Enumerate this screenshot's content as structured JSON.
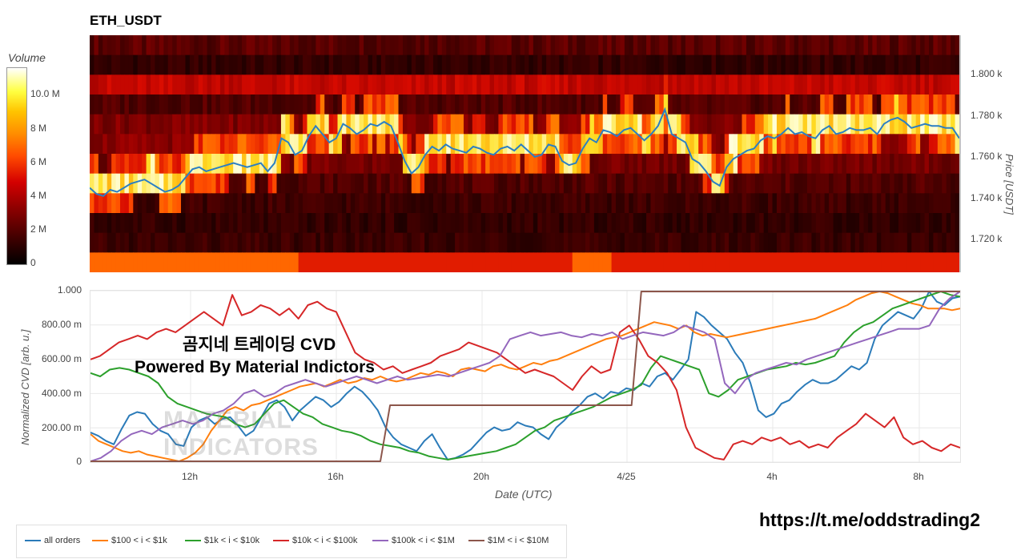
{
  "title": "ETH_USDT",
  "telegram_text": "https://t.me/oddstrading2",
  "watermark": {
    "line1": "곰지네 트레이딩 CVD",
    "line2": "Powered By Material Indictors",
    "logo_line1": "MATERIAL",
    "logo_line2": "INDICATORS"
  },
  "chart_data": [
    {
      "type": "heatmap",
      "title": "ETH_USDT",
      "colorbar": {
        "label": "Volume",
        "ticks": [
          "0",
          "2 M",
          "4 M",
          "6 M",
          "8 M",
          "10.0 M"
        ],
        "range": [
          0,
          11500000
        ]
      },
      "y_axis": {
        "label": "Price [USDT]",
        "ticks": [
          "1.720 k",
          "1.740 k",
          "1.760 k",
          "1.780 k",
          "1.800 k"
        ],
        "ylim": [
          1705,
          1820
        ]
      },
      "price_bands": [
        1815,
        1805,
        1795,
        1785,
        1775,
        1765,
        1755,
        1745,
        1735,
        1725,
        1715,
        1708
      ],
      "price_line": {
        "color": "#2a7fc4",
        "values": [
          1746,
          1743,
          1742,
          1745,
          1744,
          1746,
          1748,
          1749,
          1750,
          1748,
          1746,
          1744,
          1745,
          1747,
          1751,
          1755,
          1756,
          1754,
          1755,
          1756,
          1757,
          1758,
          1757,
          1756,
          1757,
          1758,
          1754,
          1758,
          1770,
          1768,
          1762,
          1764,
          1771,
          1776,
          1772,
          1768,
          1770,
          1777,
          1775,
          1772,
          1774,
          1777,
          1776,
          1778,
          1776,
          1768,
          1759,
          1753,
          1756,
          1762,
          1766,
          1764,
          1767,
          1765,
          1764,
          1763,
          1766,
          1765,
          1763,
          1762,
          1765,
          1766,
          1764,
          1767,
          1764,
          1761,
          1762,
          1767,
          1766,
          1759,
          1757,
          1758,
          1765,
          1770,
          1768,
          1774,
          1773,
          1771,
          1774,
          1775,
          1772,
          1769,
          1772,
          1776,
          1784,
          1772,
          1770,
          1768,
          1760,
          1758,
          1754,
          1749,
          1747,
          1756,
          1760,
          1762,
          1764,
          1765,
          1769,
          1771,
          1770,
          1772,
          1775,
          1772,
          1773,
          1771,
          1770,
          1774,
          1776,
          1772,
          1773,
          1775,
          1774,
          1774,
          1775,
          1772,
          1777,
          1779,
          1780,
          1778,
          1775,
          1776,
          1777,
          1776,
          1776,
          1775,
          1775,
          1770
        ]
      }
    },
    {
      "type": "line",
      "y_axis": {
        "label": "Normalized CVD [arb. u.]",
        "ticks": [
          "0",
          "200.00 m",
          "400.00 m",
          "600.00 m",
          "800.00 m",
          "1.000"
        ],
        "ylim": [
          0,
          1.0
        ]
      },
      "x_axis": {
        "label": "Date (UTC)",
        "ticks": [
          "12h",
          "16h",
          "20h",
          "4/25",
          "4h",
          "8h"
        ]
      },
      "legend_position": "bottom",
      "series": [
        {
          "name": "all orders",
          "color": "#2b7bb9",
          "values": [
            0.17,
            0.15,
            0.12,
            0.1,
            0.19,
            0.27,
            0.29,
            0.28,
            0.22,
            0.18,
            0.16,
            0.1,
            0.09,
            0.2,
            0.24,
            0.26,
            0.22,
            0.25,
            0.26,
            0.21,
            0.15,
            0.18,
            0.26,
            0.34,
            0.36,
            0.32,
            0.24,
            0.3,
            0.34,
            0.38,
            0.36,
            0.32,
            0.35,
            0.4,
            0.44,
            0.41,
            0.36,
            0.3,
            0.2,
            0.14,
            0.1,
            0.08,
            0.06,
            0.12,
            0.16,
            0.08,
            0.01,
            0.02,
            0.04,
            0.07,
            0.12,
            0.17,
            0.2,
            0.18,
            0.19,
            0.23,
            0.21,
            0.2,
            0.16,
            0.13,
            0.2,
            0.24,
            0.29,
            0.33,
            0.38,
            0.4,
            0.37,
            0.41,
            0.4,
            0.43,
            0.42,
            0.46,
            0.44,
            0.5,
            0.52,
            0.48,
            0.54,
            0.6,
            0.88,
            0.85,
            0.8,
            0.76,
            0.72,
            0.64,
            0.58,
            0.46,
            0.3,
            0.26,
            0.28,
            0.34,
            0.36,
            0.41,
            0.45,
            0.48,
            0.46,
            0.46,
            0.48,
            0.52,
            0.56,
            0.54,
            0.58,
            0.72,
            0.8,
            0.84,
            0.88,
            0.86,
            0.84,
            0.9,
            1.0,
            0.94,
            0.92,
            0.96,
            0.97
          ]
        },
        {
          "name": "$100 < i < $1k",
          "color": "#ff7f0e",
          "values": [
            0.16,
            0.12,
            0.1,
            0.08,
            0.06,
            0.05,
            0.06,
            0.04,
            0.03,
            0.02,
            0.01,
            0.0,
            0.02,
            0.05,
            0.1,
            0.18,
            0.24,
            0.3,
            0.32,
            0.3,
            0.33,
            0.34,
            0.36,
            0.38,
            0.4,
            0.42,
            0.44,
            0.45,
            0.46,
            0.44,
            0.46,
            0.48,
            0.46,
            0.47,
            0.49,
            0.48,
            0.5,
            0.48,
            0.47,
            0.48,
            0.5,
            0.52,
            0.51,
            0.53,
            0.52,
            0.5,
            0.54,
            0.55,
            0.54,
            0.53,
            0.56,
            0.57,
            0.55,
            0.54,
            0.56,
            0.58,
            0.57,
            0.59,
            0.6,
            0.62,
            0.64,
            0.66,
            0.68,
            0.7,
            0.72,
            0.73,
            0.74,
            0.76,
            0.78,
            0.8,
            0.82,
            0.81,
            0.8,
            0.78,
            0.8,
            0.76,
            0.74,
            0.75,
            0.74,
            0.73,
            0.74,
            0.75,
            0.76,
            0.77,
            0.78,
            0.79,
            0.8,
            0.81,
            0.82,
            0.83,
            0.84,
            0.86,
            0.88,
            0.9,
            0.92,
            0.95,
            0.97,
            0.99,
            1.0,
            0.99,
            0.97,
            0.95,
            0.93,
            0.92,
            0.9,
            0.9,
            0.9,
            0.89,
            0.9
          ]
        },
        {
          "name": "$1k < i < $10k",
          "color": "#2ca02c",
          "values": [
            0.52,
            0.5,
            0.54,
            0.55,
            0.54,
            0.52,
            0.5,
            0.46,
            0.38,
            0.34,
            0.32,
            0.3,
            0.28,
            0.27,
            0.26,
            0.22,
            0.2,
            0.22,
            0.28,
            0.34,
            0.36,
            0.32,
            0.28,
            0.26,
            0.22,
            0.2,
            0.18,
            0.17,
            0.15,
            0.12,
            0.1,
            0.09,
            0.08,
            0.06,
            0.05,
            0.03,
            0.02,
            0.01,
            0.02,
            0.03,
            0.04,
            0.05,
            0.06,
            0.08,
            0.1,
            0.14,
            0.18,
            0.2,
            0.24,
            0.26,
            0.28,
            0.3,
            0.32,
            0.35,
            0.38,
            0.4,
            0.42,
            0.45,
            0.55,
            0.62,
            0.6,
            0.58,
            0.56,
            0.54,
            0.4,
            0.38,
            0.42,
            0.48,
            0.5,
            0.52,
            0.54,
            0.55,
            0.56,
            0.58,
            0.57,
            0.58,
            0.6,
            0.62,
            0.7,
            0.76,
            0.8,
            0.82,
            0.86,
            0.9,
            0.92,
            0.94,
            0.96,
            0.98,
            1.0,
            0.98,
            0.97
          ]
        },
        {
          "name": "$10k < i < $100k",
          "color": "#d62728",
          "values": [
            0.6,
            0.62,
            0.66,
            0.7,
            0.72,
            0.74,
            0.72,
            0.76,
            0.78,
            0.76,
            0.8,
            0.84,
            0.88,
            0.84,
            0.8,
            0.98,
            0.86,
            0.88,
            0.92,
            0.9,
            0.86,
            0.9,
            0.84,
            0.92,
            0.94,
            0.9,
            0.88,
            0.76,
            0.64,
            0.6,
            0.58,
            0.54,
            0.56,
            0.52,
            0.54,
            0.56,
            0.58,
            0.62,
            0.64,
            0.66,
            0.7,
            0.68,
            0.66,
            0.64,
            0.6,
            0.56,
            0.52,
            0.54,
            0.52,
            0.5,
            0.46,
            0.42,
            0.5,
            0.56,
            0.52,
            0.54,
            0.76,
            0.8,
            0.72,
            0.62,
            0.58,
            0.52,
            0.42,
            0.2,
            0.08,
            0.05,
            0.02,
            0.01,
            0.1,
            0.12,
            0.1,
            0.14,
            0.12,
            0.14,
            0.1,
            0.12,
            0.08,
            0.1,
            0.08,
            0.14,
            0.18,
            0.22,
            0.28,
            0.24,
            0.2,
            0.26,
            0.14,
            0.1,
            0.12,
            0.08,
            0.06,
            0.1,
            0.08
          ]
        },
        {
          "name": "$100k < i < $1M",
          "color": "#9467bd",
          "values": [
            0.0,
            0.02,
            0.06,
            0.12,
            0.16,
            0.18,
            0.16,
            0.2,
            0.22,
            0.24,
            0.22,
            0.24,
            0.28,
            0.3,
            0.34,
            0.4,
            0.42,
            0.38,
            0.4,
            0.44,
            0.46,
            0.48,
            0.46,
            0.44,
            0.46,
            0.48,
            0.5,
            0.48,
            0.46,
            0.48,
            0.5,
            0.48,
            0.49,
            0.5,
            0.51,
            0.5,
            0.52,
            0.54,
            0.56,
            0.58,
            0.62,
            0.72,
            0.74,
            0.76,
            0.74,
            0.75,
            0.76,
            0.74,
            0.73,
            0.75,
            0.74,
            0.76,
            0.72,
            0.74,
            0.76,
            0.75,
            0.74,
            0.76,
            0.8,
            0.78,
            0.76,
            0.72,
            0.46,
            0.4,
            0.48,
            0.52,
            0.54,
            0.56,
            0.58,
            0.57,
            0.6,
            0.62,
            0.64,
            0.66,
            0.68,
            0.7,
            0.72,
            0.74,
            0.76,
            0.78,
            0.78,
            0.78,
            0.8,
            0.9,
            0.96,
            1.0
          ]
        },
        {
          "name": "$1M < i < $10M",
          "color": "#8c564b",
          "values": [
            0.0,
            0.0,
            0.0,
            0.0,
            0.0,
            0.0,
            0.0,
            0.0,
            0.0,
            0.0,
            0.0,
            0.0,
            0.0,
            0.0,
            0.0,
            0.0,
            0.0,
            0.0,
            0.0,
            0.0,
            0.0,
            0.0,
            0.0,
            0.0,
            0.0,
            0.0,
            0.0,
            0.0,
            0.0,
            0.0,
            0.0,
            0.33,
            0.33,
            0.33,
            0.33,
            0.33,
            0.33,
            0.33,
            0.33,
            0.33,
            0.33,
            0.33,
            0.33,
            0.33,
            0.33,
            0.33,
            0.33,
            0.33,
            0.33,
            0.33,
            0.33,
            0.33,
            0.33,
            0.33,
            0.33,
            0.33,
            0.33,
            1.0,
            1.0,
            1.0,
            1.0,
            1.0,
            1.0,
            1.0,
            1.0,
            1.0,
            1.0,
            1.0,
            1.0,
            1.0,
            1.0,
            1.0,
            1.0,
            1.0,
            1.0,
            1.0,
            1.0,
            1.0,
            1.0,
            1.0,
            1.0,
            1.0,
            1.0,
            1.0,
            1.0,
            1.0,
            1.0,
            1.0,
            1.0,
            1.0,
            1.0
          ]
        }
      ]
    }
  ]
}
